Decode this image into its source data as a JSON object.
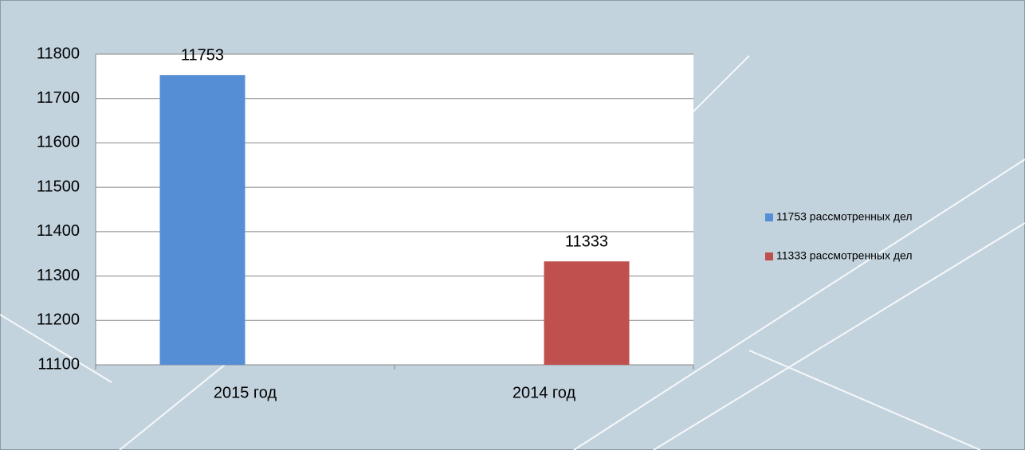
{
  "chart_data": {
    "type": "bar",
    "categories": [
      "2015 год",
      "2014 год"
    ],
    "series": [
      {
        "name": "11753 рассмотренных дел",
        "color": "#558ed5",
        "values": [
          11753,
          null
        ]
      },
      {
        "name": "11333 рассмотренных дел",
        "color": "#c0504d",
        "values": [
          null,
          11333
        ]
      }
    ],
    "ylim": [
      11100,
      11800
    ],
    "yticks": [
      11100,
      11200,
      11300,
      11400,
      11500,
      11600,
      11700,
      11800
    ],
    "grid": true,
    "legend": "right"
  }
}
